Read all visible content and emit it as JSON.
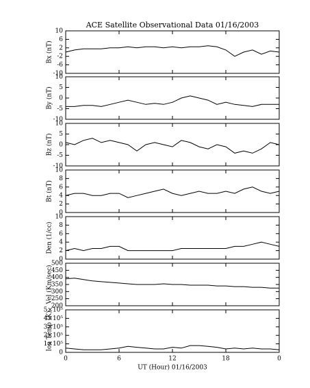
{
  "chart_data": [
    {
      "type": "line",
      "title": "ACE Satellite Observational Data   01/16/2003",
      "ylabel": "Bx (nT)",
      "color": "#000000",
      "x": [
        0,
        1,
        2,
        3,
        4,
        5,
        6,
        7,
        8,
        9,
        10,
        11,
        12,
        13,
        14,
        15,
        16,
        17,
        18,
        19,
        20,
        21,
        22,
        23,
        24
      ],
      "values": [
        0,
        1,
        1.5,
        1.5,
        1.5,
        2,
        2,
        2.5,
        2,
        2.5,
        2.5,
        2,
        2.5,
        2,
        2.5,
        2.5,
        3,
        2.5,
        1,
        -2,
        0,
        1,
        -1,
        0.5,
        0
      ],
      "xlim": [
        0,
        24
      ],
      "ylim": [
        -10,
        10
      ],
      "yticks": [
        -10,
        -6,
        -2,
        2,
        6,
        10
      ]
    },
    {
      "type": "line",
      "ylabel": "By (nT)",
      "color": "#000000",
      "x": [
        0,
        1,
        2,
        3,
        4,
        5,
        6,
        7,
        8,
        9,
        10,
        11,
        12,
        13,
        14,
        15,
        16,
        17,
        18,
        19,
        20,
        21,
        22,
        23,
        24
      ],
      "values": [
        -4,
        -4,
        -3.5,
        -3.5,
        -4,
        -3,
        -2,
        -1,
        -2,
        -3,
        -2.5,
        -3,
        -2,
        0,
        1,
        0,
        -1,
        -3,
        -2,
        -3,
        -3.5,
        -4,
        -3,
        -3,
        -3
      ],
      "xlim": [
        0,
        24
      ],
      "ylim": [
        -10,
        10
      ],
      "yticks": [
        -10,
        -5,
        0,
        5,
        10
      ]
    },
    {
      "type": "line",
      "ylabel": "Bz (nT)",
      "color": "#000000",
      "x": [
        0,
        1,
        2,
        3,
        4,
        5,
        6,
        7,
        8,
        9,
        10,
        11,
        12,
        13,
        14,
        15,
        16,
        17,
        18,
        19,
        20,
        21,
        22,
        23,
        24
      ],
      "values": [
        1,
        0,
        2,
        3,
        1,
        2,
        1,
        0,
        -3,
        0,
        1,
        0,
        -1,
        2,
        1,
        -1,
        -2,
        0,
        -1,
        -4,
        -3,
        -4,
        -2,
        1,
        0
      ],
      "xlim": [
        0,
        24
      ],
      "ylim": [
        -10,
        10
      ],
      "yticks": [
        -10,
        -5,
        0,
        5,
        10
      ]
    },
    {
      "type": "line",
      "ylabel": "Bt (nT)",
      "color": "#000000",
      "x": [
        0,
        1,
        2,
        3,
        4,
        5,
        6,
        7,
        8,
        9,
        10,
        11,
        12,
        13,
        14,
        15,
        16,
        17,
        18,
        19,
        20,
        21,
        22,
        23,
        24
      ],
      "values": [
        4,
        4.5,
        4.5,
        4,
        4,
        4.5,
        4.5,
        3.5,
        4,
        4.5,
        5,
        5.5,
        4.5,
        4,
        4.5,
        5,
        4.5,
        4.5,
        5,
        4.5,
        5.5,
        6,
        5,
        4.5,
        5
      ],
      "xlim": [
        0,
        24
      ],
      "ylim": [
        0,
        10
      ],
      "yticks": [
        0,
        2,
        4,
        6,
        8,
        10
      ]
    },
    {
      "type": "line",
      "ylabel": "Den (1/cc)",
      "color": "#000000",
      "x": [
        0,
        1,
        2,
        3,
        4,
        5,
        6,
        7,
        8,
        9,
        10,
        11,
        12,
        13,
        14,
        15,
        16,
        17,
        18,
        19,
        20,
        21,
        22,
        23,
        24
      ],
      "values": [
        2,
        2.5,
        2,
        2.5,
        2.5,
        3,
        3,
        2,
        2,
        2,
        2,
        2,
        2,
        2.5,
        2.5,
        2.5,
        2.5,
        2.5,
        2.5,
        3,
        3,
        3.5,
        4,
        3.5,
        3
      ],
      "xlim": [
        0,
        24
      ],
      "ylim": [
        0,
        10
      ],
      "yticks": [
        0,
        2,
        4,
        6,
        8,
        10
      ]
    },
    {
      "type": "line",
      "ylabel": "Vel (Km/sec)",
      "color": "#000000",
      "x": [
        0,
        1,
        2,
        3,
        4,
        5,
        6,
        7,
        8,
        9,
        10,
        11,
        12,
        13,
        14,
        15,
        16,
        17,
        18,
        19,
        20,
        21,
        22,
        23,
        24
      ],
      "values": [
        390,
        395,
        385,
        375,
        370,
        365,
        360,
        355,
        350,
        350,
        350,
        355,
        350,
        350,
        345,
        345,
        345,
        340,
        340,
        335,
        335,
        330,
        330,
        325,
        325
      ],
      "xlim": [
        0,
        24
      ],
      "ylim": [
        200,
        500
      ],
      "yticks": [
        200,
        250,
        300,
        350,
        400,
        450,
        500
      ]
    },
    {
      "type": "line",
      "ylabel": "Ion Temp (K)",
      "xlabel": "UT (Hour)  01/16/2003",
      "color": "#000000",
      "x": [
        0,
        1,
        2,
        3,
        4,
        5,
        6,
        7,
        8,
        9,
        10,
        11,
        12,
        13,
        14,
        15,
        16,
        17,
        18,
        19,
        20,
        21,
        22,
        23,
        24
      ],
      "values": [
        50000,
        40000,
        30000,
        30000,
        30000,
        40000,
        50000,
        70000,
        60000,
        50000,
        40000,
        40000,
        60000,
        50000,
        80000,
        80000,
        70000,
        60000,
        40000,
        50000,
        40000,
        50000,
        40000,
        40000,
        30000
      ],
      "xlim": [
        0,
        24
      ],
      "ylim": [
        0,
        500000
      ],
      "yticks": [
        0,
        {
          "value": 100000,
          "label": "1×10⁵"
        },
        {
          "value": 200000,
          "label": "2×10⁵"
        },
        {
          "value": 300000,
          "label": "3×10⁵"
        },
        {
          "value": 400000,
          "label": "4×10⁵"
        },
        {
          "value": 500000,
          "label": "5×10⁵"
        }
      ],
      "xticks": [
        0,
        6,
        12,
        18,
        {
          "value": 24,
          "label": "0"
        }
      ]
    }
  ]
}
